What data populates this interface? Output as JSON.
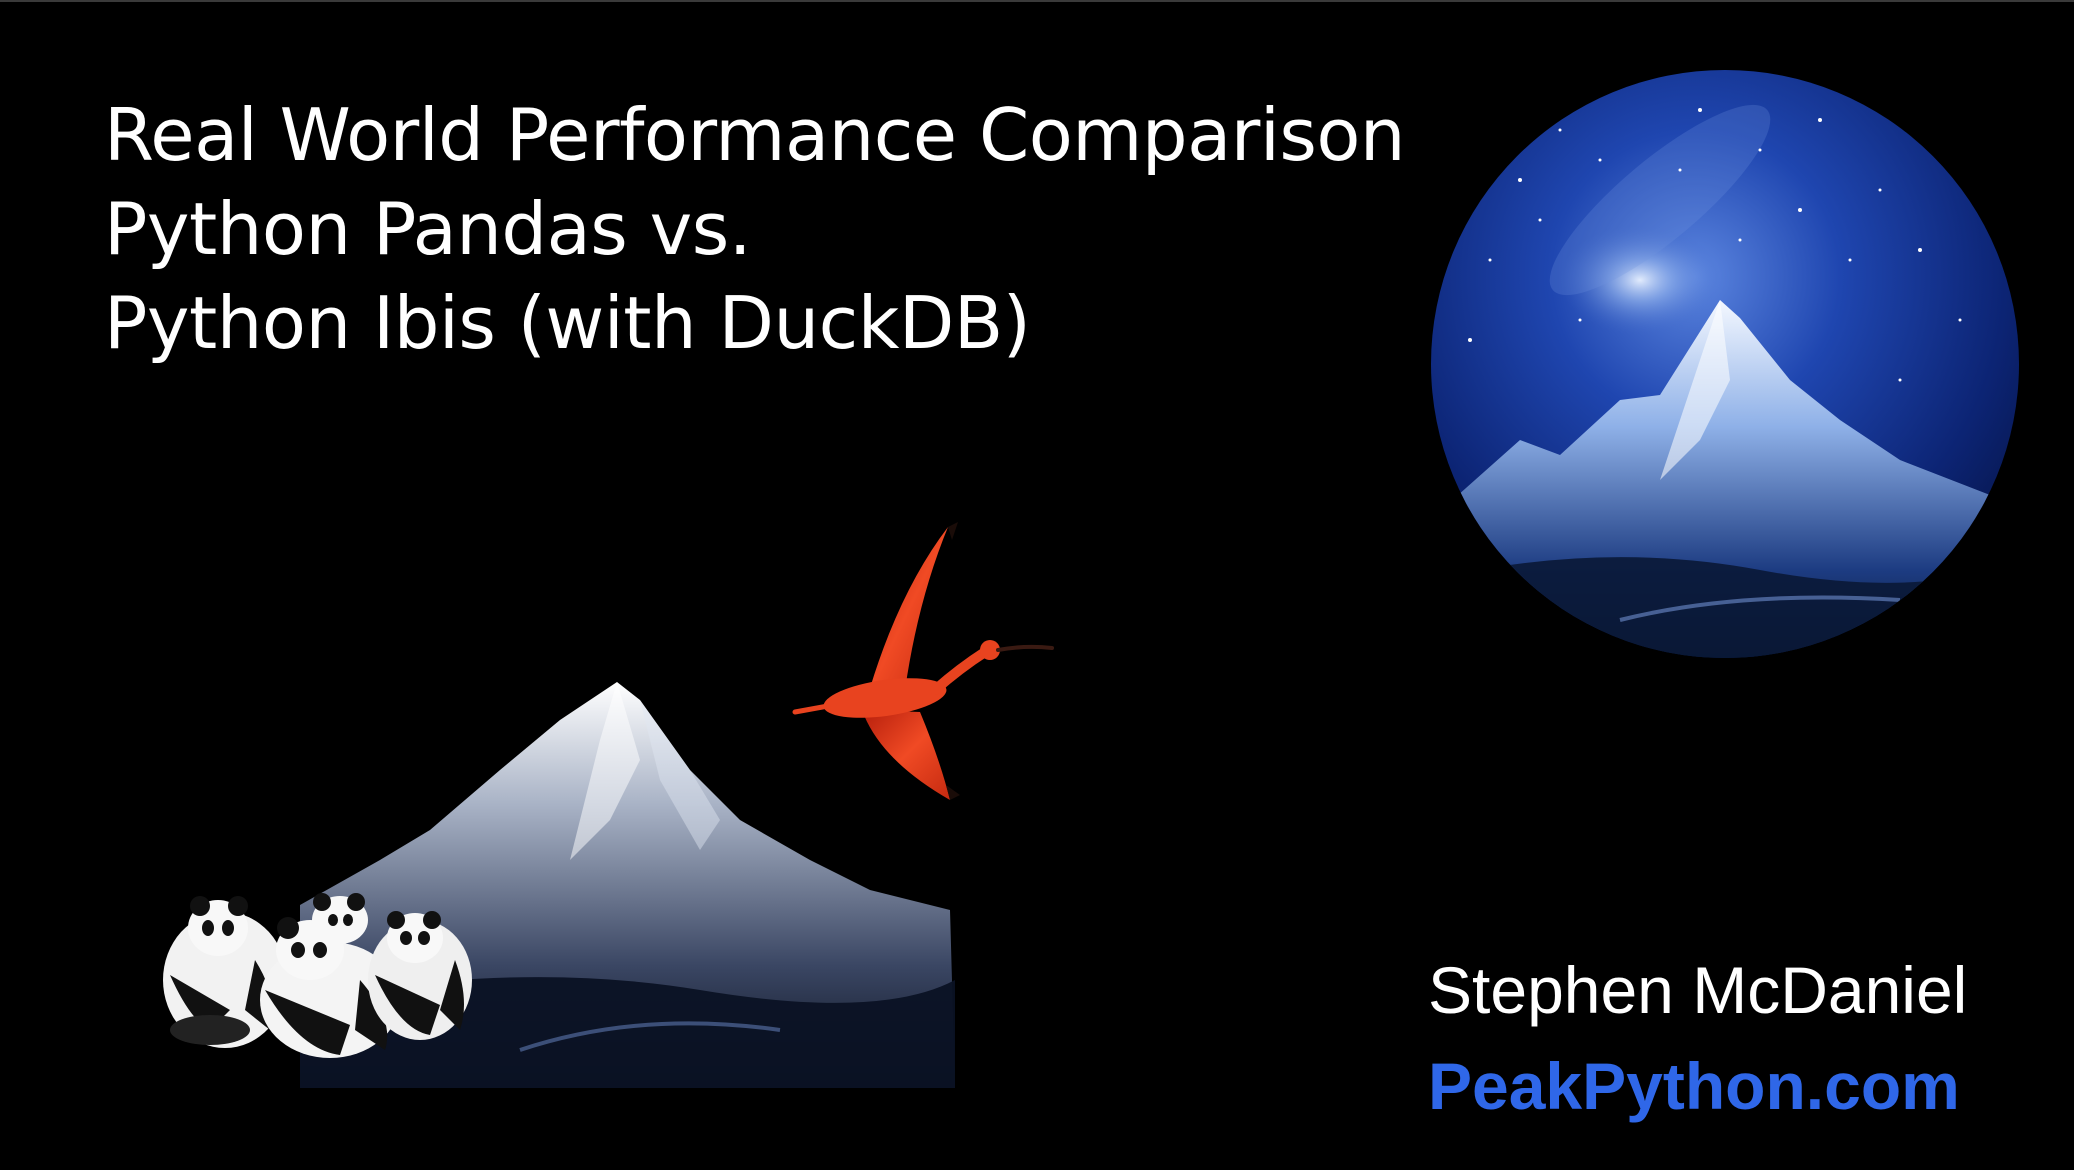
{
  "slide": {
    "title_lines": [
      "Real World Performance Comparison",
      "Python Pandas vs.",
      "Python Ibis (with DuckDB)"
    ],
    "author": "Stephen McDaniel",
    "website": "PeakPython.com"
  },
  "colors": {
    "background": "#000000",
    "text": "#ffffff",
    "link": "#2f67e8",
    "ibis_bird": "#e63a1c"
  },
  "icons": {
    "night_sky_mountain": "mountain-night-circle-icon",
    "mountain": "mountain-icon",
    "bird": "ibis-icon",
    "pandas": "panda-group-icon"
  }
}
